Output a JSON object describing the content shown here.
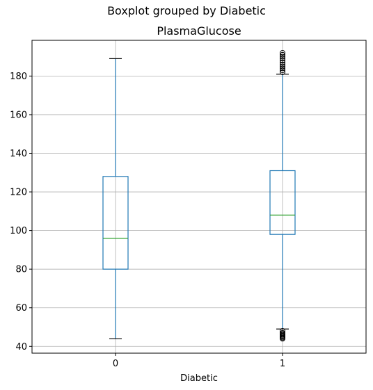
{
  "chart_data": {
    "type": "boxplot",
    "suptitle": "Boxplot grouped by Diabetic",
    "title": "PlasmaGlucose",
    "xlabel": "Diabetic",
    "ylabel": "",
    "categories": [
      "0",
      "1"
    ],
    "ylim": [
      36.5,
      198.5
    ],
    "yticks": [
      40,
      60,
      80,
      100,
      120,
      140,
      160,
      180
    ],
    "grid": true,
    "boxes": [
      {
        "category": "0",
        "whisker_low": 44,
        "q1": 80,
        "median": 96,
        "q3": 128,
        "whisker_high": 189,
        "outliers": []
      },
      {
        "category": "1",
        "whisker_low": 49,
        "q1": 98,
        "median": 108,
        "q3": 131,
        "whisker_high": 181,
        "outliers": [
          44,
          44.5,
          45,
          45.5,
          46,
          46.5,
          47,
          48,
          182,
          183,
          184,
          185,
          186,
          187,
          188,
          189,
          190,
          191,
          192
        ]
      }
    ],
    "colors": {
      "box": "#1f77b4",
      "median": "#2ca02c",
      "grid": "#b0b0b0"
    }
  }
}
